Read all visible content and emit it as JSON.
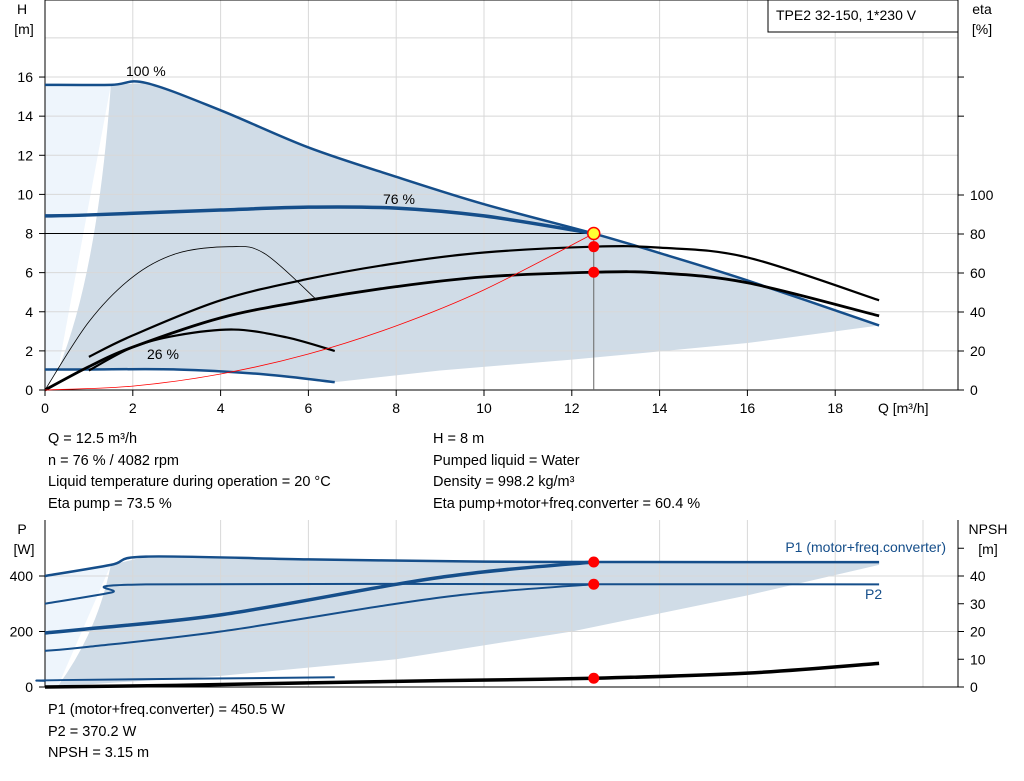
{
  "chart_data": [
    {
      "type": "line",
      "title": "TPE2 32-150, 1*230 V",
      "xlabel": "Q [m³/h]",
      "ylabel": [
        "H",
        "[m]"
      ],
      "y2label": [
        "eta",
        "[%]"
      ],
      "xlim": [
        0,
        20.8
      ],
      "ylim": [
        0,
        20
      ],
      "y2lim": [
        0,
        100
      ],
      "grid": true,
      "xticks": [
        0,
        2,
        4,
        6,
        8,
        10,
        12,
        14,
        16,
        18
      ],
      "yticks": [
        0,
        2,
        4,
        6,
        8,
        10,
        12,
        14,
        16
      ],
      "y2ticks": [
        0,
        20,
        40,
        60,
        80,
        100
      ],
      "curve_labels": [
        "100 %",
        "76 %",
        "26 %"
      ],
      "series": [
        {
          "id": "h100",
          "axis": "H",
          "color": "#154e8a",
          "points": [
            [
              0,
              15.6
            ],
            [
              1.5,
              15.6
            ],
            [
              2.3,
              15.7
            ],
            [
              4,
              14.3
            ],
            [
              6,
              12.4
            ],
            [
              8,
              10.9
            ],
            [
              10,
              9.5
            ],
            [
              12.5,
              8
            ],
            [
              14,
              7
            ],
            [
              16,
              5.6
            ],
            [
              19,
              3.3
            ]
          ]
        },
        {
          "id": "h76",
          "axis": "H",
          "color": "#154e8a",
          "points": [
            [
              0,
              8.9
            ],
            [
              1,
              8.95
            ],
            [
              4,
              9.2
            ],
            [
              6,
              9.35
            ],
            [
              8,
              9.3
            ],
            [
              10,
              8.9
            ],
            [
              12.5,
              8
            ]
          ]
        },
        {
          "id": "h26",
          "axis": "H",
          "color": "#154e8a",
          "points": [
            [
              0,
              1.05
            ],
            [
              1,
              1.05
            ],
            [
              3,
              1.05
            ],
            [
              5,
              0.8
            ],
            [
              6.6,
              0.4
            ]
          ]
        },
        {
          "id": "eta-pump",
          "axis": "eta",
          "color": "#000000",
          "points": [
            [
              1,
              17
            ],
            [
              2,
              28
            ],
            [
              4,
              46
            ],
            [
              6,
              57
            ],
            [
              8,
              65
            ],
            [
              10,
              70.5
            ],
            [
              12.5,
              73.5
            ],
            [
              14,
              73
            ],
            [
              16,
              68
            ],
            [
              19,
              46
            ]
          ]
        },
        {
          "id": "eta-total",
          "axis": "eta",
          "color": "#000000",
          "points": [
            [
              0,
              0
            ],
            [
              1,
              12
            ],
            [
              2,
              22
            ],
            [
              4,
              37
            ],
            [
              6,
              46
            ],
            [
              8,
              53
            ],
            [
              10,
              58
            ],
            [
              12.5,
              60.4
            ],
            [
              14,
              60
            ],
            [
              16,
              55
            ],
            [
              19,
              38
            ]
          ]
        },
        {
          "id": "eta-pump-26",
          "axis": "eta",
          "color": "#000000",
          "points": [
            [
              0,
              0
            ],
            [
              1,
              35
            ],
            [
              2,
              58
            ],
            [
              3,
              70
            ],
            [
              4.2,
              73.5
            ],
            [
              5,
              70
            ],
            [
              6.2,
              46
            ]
          ]
        },
        {
          "id": "eta-total-26",
          "axis": "eta",
          "color": "#000000",
          "points": [
            [
              1,
              10
            ],
            [
              2,
              22
            ],
            [
              3,
              28
            ],
            [
              4.3,
              31
            ],
            [
              5.5,
              27
            ],
            [
              6.6,
              20
            ]
          ]
        },
        {
          "id": "system",
          "axis": "H",
          "color": "#ff0000",
          "points": [
            [
              0,
              0
            ],
            [
              2,
              0.2
            ],
            [
              4,
              0.82
            ],
            [
              6,
              1.84
            ],
            [
              8,
              3.28
            ],
            [
              10,
              5.12
            ],
            [
              12.5,
              8
            ]
          ]
        }
      ],
      "duty_point": {
        "Q": 12.5,
        "H": 8,
        "eta_pump": 73.5,
        "eta_total": 60.4
      }
    },
    {
      "type": "line",
      "xlim": [
        0,
        20.8
      ],
      "ylim": [
        0,
        540
      ],
      "y2lim": [
        0,
        54
      ],
      "ylabel": [
        "P",
        "[W]"
      ],
      "y2label": [
        "NPSH",
        "[m]"
      ],
      "yticks": [
        0,
        200,
        400
      ],
      "y2ticks": [
        0,
        10,
        20,
        30,
        40
      ],
      "series": [
        {
          "id": "p1",
          "name": "P1 (motor+freq.converter)",
          "axis": "P",
          "color": "#154e8a",
          "points": [
            [
              0,
              400
            ],
            [
              1.5,
              440
            ],
            [
              2.3,
              470
            ],
            [
              6,
              460
            ],
            [
              10,
              452
            ],
            [
              12.5,
              450.5
            ],
            [
              19,
              450
            ]
          ]
        },
        {
          "id": "p2",
          "name": "P2",
          "axis": "P",
          "color": "#154e8a",
          "points": [
            [
              0,
              300
            ],
            [
              1.5,
              340
            ],
            [
              2.3,
              370
            ],
            [
              12.5,
              370.2
            ],
            [
              19,
              370
            ]
          ]
        },
        {
          "id": "p1-76",
          "axis": "P",
          "color": "#154e8a",
          "points": [
            [
              0,
              195
            ],
            [
              1,
              210
            ],
            [
              4,
              260
            ],
            [
              8,
              370
            ],
            [
              10,
              415
            ],
            [
              12.5,
              450.5
            ]
          ]
        },
        {
          "id": "p2-76",
          "axis": "P",
          "color": "#154e8a",
          "points": [
            [
              0,
              130
            ],
            [
              1,
              145
            ],
            [
              4,
              200
            ],
            [
              8,
              300
            ],
            [
              10,
              340
            ],
            [
              12.5,
              370.2
            ]
          ]
        },
        {
          "id": "p-26",
          "axis": "P",
          "color": "#154e8a",
          "points": [
            [
              0,
              22
            ],
            [
              0.4,
              25
            ],
            [
              6.6,
              35
            ]
          ]
        },
        {
          "id": "npsh",
          "axis": "NPSH",
          "color": "#000000",
          "points": [
            [
              0,
              0
            ],
            [
              3,
              0.6
            ],
            [
              6,
              1.5
            ],
            [
              9,
              2.3
            ],
            [
              12.5,
              3.15
            ],
            [
              16,
              5
            ],
            [
              19,
              8.5
            ]
          ]
        }
      ],
      "duty_point": {
        "P1": 450.5,
        "P2": 370.2,
        "NPSH": 3.15
      }
    }
  ],
  "info_top_left": [
    "Q = 12.5 m³/h",
    "n = 76 % / 4082 rpm",
    "Liquid temperature during operation = 20 °C",
    "Eta pump = 73.5 %"
  ],
  "info_top_right": [
    "H = 8 m",
    "Pumped liquid = Water",
    "Density = 998.2 kg/m³",
    "Eta pump+motor+freq.converter = 60.4 %"
  ],
  "info_bottom": [
    "P1 (motor+freq.converter) = 450.5 W",
    "P2 = 370.2 W",
    "NPSH = 3.15 m"
  ]
}
